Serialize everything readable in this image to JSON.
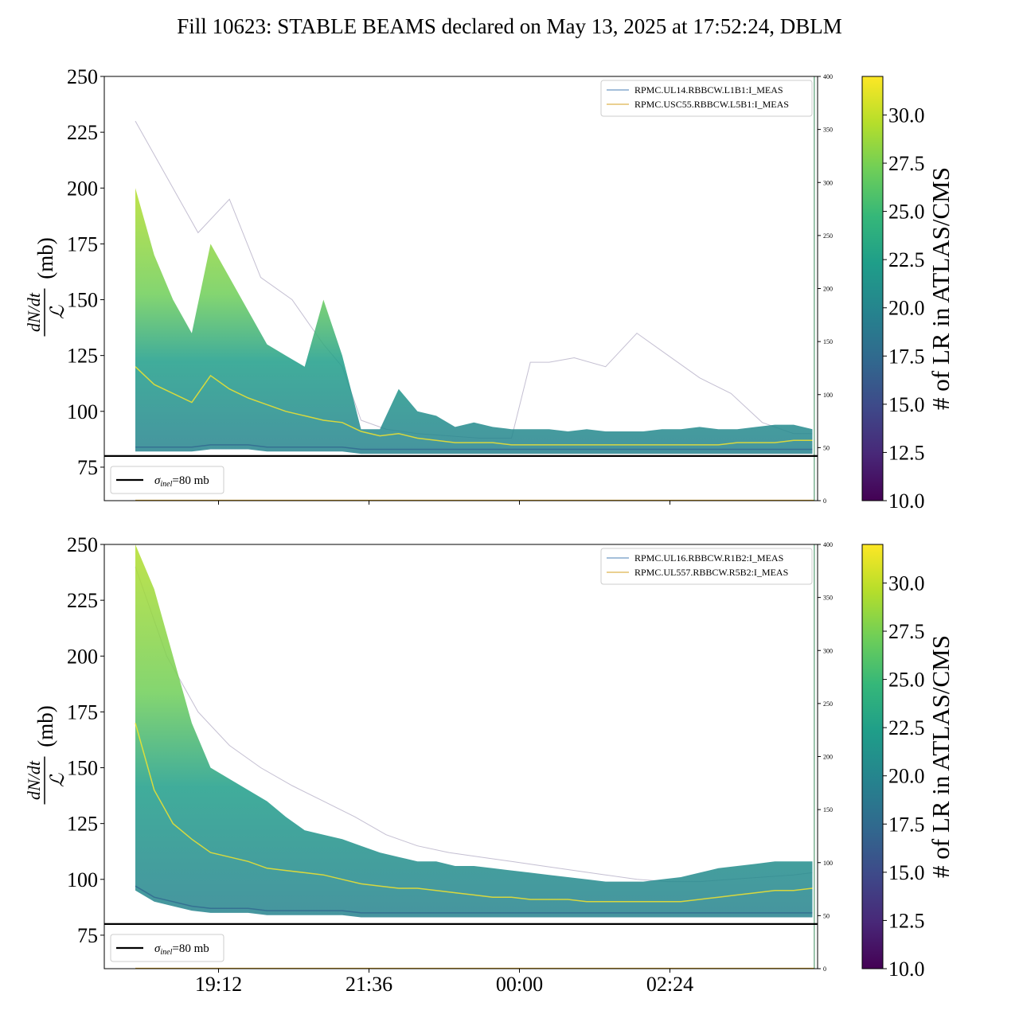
{
  "suptitle": "Fill 10623: STABLE BEAMS declared on May 13, 2025 at 17:52:24, DBLM",
  "colors": {
    "beam1_line": "#4a7fb5",
    "beam2_line": "#d4a020",
    "reference_line": "#000000",
    "viridis": [
      "#440154",
      "#482878",
      "#3e4989",
      "#31688e",
      "#26828e",
      "#1f9e89",
      "#35b779",
      "#6ece58",
      "#b5de2b",
      "#fde725"
    ]
  },
  "chart_data": [
    {
      "type": "line",
      "panel": "top",
      "ylabel_top": "dN/dt",
      "ylabel_bottom": "ℒ",
      "ylabel_unit": "(mb)",
      "ylim": [
        60,
        250
      ],
      "yticks": [
        75,
        100,
        125,
        150,
        175,
        200,
        225,
        250
      ],
      "ytick_labels": [
        "75",
        "100",
        "125",
        "150",
        "175",
        "200",
        "225",
        "250"
      ],
      "x_tick_labels": [
        "19:12",
        "21:36",
        "00:00",
        "02:24"
      ],
      "x_tick_labels_shown": false,
      "secondary_ylim": [
        0,
        400
      ],
      "secondary_yticks": [
        0,
        50,
        100,
        150,
        200,
        250,
        300,
        350,
        400
      ],
      "secondary_ytick_labels": [
        "0",
        "50",
        "100",
        "150",
        "200",
        "250",
        "300",
        "350",
        "400"
      ],
      "reference_value": 80,
      "reference_legend": "σ",
      "reference_legend_sub": "inel",
      "reference_legend_tail": "=80 mb",
      "legend": [
        "RPMC.UL14.RBBCW.L1B1:I_MEAS",
        "RPMC.USC55.RBBCW.L5B1:I_MEAS"
      ],
      "legend_placement": "top-right",
      "colorbar_label": "# of LR in ATLAS/CMS",
      "colorbar_range": [
        10,
        32
      ],
      "colorbar_ticks": [
        10,
        12.5,
        15,
        17.5,
        20,
        22.5,
        25,
        27.5,
        30
      ],
      "colorbar_tick_labels": [
        "10.0",
        "12.5",
        "15.0",
        "17.5",
        "20.0",
        "22.5",
        "25.0",
        "27.5",
        "30.0"
      ],
      "band_time_hours": [
        0.0,
        0.3,
        0.6,
        0.9,
        1.2,
        1.5,
        1.8,
        2.1,
        2.4,
        2.7,
        3.0,
        3.3,
        3.6,
        3.9,
        4.2,
        4.5,
        4.8,
        5.1,
        5.4,
        5.7,
        6.0,
        6.3,
        6.6,
        6.9,
        7.2,
        7.5,
        7.8,
        8.1,
        8.4,
        8.7,
        9.0,
        9.3,
        9.6,
        9.9,
        10.2,
        10.5,
        10.8
      ],
      "band_lower": [
        82,
        82,
        82,
        82,
        83,
        83,
        83,
        82,
        82,
        82,
        82,
        82,
        81,
        81,
        81,
        81,
        81,
        81,
        81,
        81,
        81,
        81,
        81,
        81,
        81,
        81,
        81,
        81,
        81,
        81,
        81,
        81,
        81,
        81,
        81,
        81,
        81
      ],
      "band_mid": [
        120,
        112,
        108,
        104,
        116,
        110,
        106,
        103,
        100,
        98,
        96,
        95,
        91,
        89,
        90,
        88,
        87,
        86,
        86,
        86,
        85,
        85,
        85,
        85,
        85,
        85,
        85,
        85,
        85,
        85,
        85,
        85,
        86,
        86,
        86,
        87,
        87
      ],
      "band_upper": [
        200,
        170,
        150,
        135,
        175,
        160,
        145,
        130,
        125,
        120,
        150,
        125,
        92,
        92,
        110,
        100,
        98,
        93,
        95,
        93,
        92,
        92,
        92,
        91,
        92,
        91,
        91,
        91,
        92,
        92,
        93,
        92,
        92,
        93,
        94,
        94,
        92
      ],
      "faint_trace_time_hours": [
        0.0,
        0.5,
        1.0,
        1.5,
        2.0,
        2.5,
        3.0,
        3.3,
        3.6,
        4.0,
        4.5,
        5.0,
        5.5,
        6.0,
        6.3,
        6.6,
        7.0,
        7.5,
        8.0,
        8.5,
        9.0,
        9.5,
        10.0,
        10.5,
        10.8
      ],
      "faint_trace_values": [
        230,
        205,
        180,
        195,
        160,
        150,
        130,
        120,
        96,
        92,
        90,
        89,
        88,
        88,
        122,
        122,
        124,
        120,
        135,
        125,
        115,
        108,
        95,
        90,
        90
      ]
    },
    {
      "type": "line",
      "panel": "bottom",
      "ylabel_top": "dN/dt",
      "ylabel_bottom": "ℒ",
      "ylabel_unit": "(mb)",
      "ylim": [
        60,
        250
      ],
      "yticks": [
        75,
        100,
        125,
        150,
        175,
        200,
        225,
        250
      ],
      "ytick_labels": [
        "75",
        "100",
        "125",
        "150",
        "175",
        "200",
        "225",
        "250"
      ],
      "x_tick_labels": [
        "19:12",
        "21:36",
        "00:00",
        "02:24"
      ],
      "x_tick_labels_shown": true,
      "secondary_ylim": [
        0,
        400
      ],
      "secondary_yticks": [
        0,
        50,
        100,
        150,
        200,
        250,
        300,
        350,
        400
      ],
      "secondary_ytick_labels": [
        "0",
        "50",
        "100",
        "150",
        "200",
        "250",
        "300",
        "350",
        "400"
      ],
      "reference_value": 80,
      "reference_legend": "σ",
      "reference_legend_sub": "inel",
      "reference_legend_tail": "=80 mb",
      "legend": [
        "RPMC.UL16.RBBCW.R1B2:I_MEAS",
        "RPMC.UL557.RBBCW.R5B2:I_MEAS"
      ],
      "legend_placement": "top-right",
      "colorbar_label": "# of LR in ATLAS/CMS",
      "colorbar_range": [
        10,
        32
      ],
      "colorbar_ticks": [
        10,
        12.5,
        15,
        17.5,
        20,
        22.5,
        25,
        27.5,
        30
      ],
      "colorbar_tick_labels": [
        "10.0",
        "12.5",
        "15.0",
        "17.5",
        "20.0",
        "22.5",
        "25.0",
        "27.5",
        "30.0"
      ],
      "band_time_hours": [
        0.0,
        0.3,
        0.6,
        0.9,
        1.2,
        1.5,
        1.8,
        2.1,
        2.4,
        2.7,
        3.0,
        3.3,
        3.6,
        3.9,
        4.2,
        4.5,
        4.8,
        5.1,
        5.4,
        5.7,
        6.0,
        6.3,
        6.6,
        6.9,
        7.2,
        7.5,
        7.8,
        8.1,
        8.4,
        8.7,
        9.0,
        9.3,
        9.6,
        9.9,
        10.2,
        10.5,
        10.8
      ],
      "band_lower": [
        95,
        90,
        88,
        86,
        85,
        85,
        85,
        84,
        84,
        84,
        84,
        84,
        83,
        83,
        83,
        83,
        83,
        83,
        83,
        83,
        83,
        83,
        83,
        83,
        83,
        83,
        83,
        83,
        83,
        83,
        83,
        83,
        83,
        83,
        83,
        83,
        83
      ],
      "band_mid": [
        170,
        140,
        125,
        118,
        112,
        110,
        108,
        105,
        104,
        103,
        102,
        100,
        98,
        97,
        96,
        96,
        95,
        94,
        93,
        92,
        92,
        91,
        91,
        91,
        90,
        90,
        90,
        90,
        90,
        90,
        91,
        92,
        93,
        94,
        95,
        95,
        96
      ],
      "band_upper": [
        250,
        230,
        200,
        170,
        150,
        145,
        140,
        135,
        128,
        122,
        120,
        118,
        115,
        112,
        110,
        108,
        108,
        106,
        106,
        105,
        104,
        103,
        102,
        101,
        100,
        99,
        99,
        99,
        100,
        101,
        103,
        105,
        106,
        107,
        108,
        108,
        108
      ],
      "faint_trace_time_hours": [
        0.0,
        0.5,
        1.0,
        1.5,
        2.0,
        2.5,
        3.0,
        3.5,
        4.0,
        4.5,
        5.0,
        5.5,
        6.0,
        6.5,
        7.0,
        7.5,
        8.0,
        8.5,
        9.0,
        9.5,
        10.0,
        10.5,
        10.8
      ],
      "faint_trace_values": [
        240,
        200,
        175,
        160,
        150,
        142,
        135,
        128,
        120,
        115,
        112,
        110,
        108,
        106,
        104,
        102,
        100,
        99,
        99,
        100,
        101,
        102,
        103
      ]
    }
  ]
}
